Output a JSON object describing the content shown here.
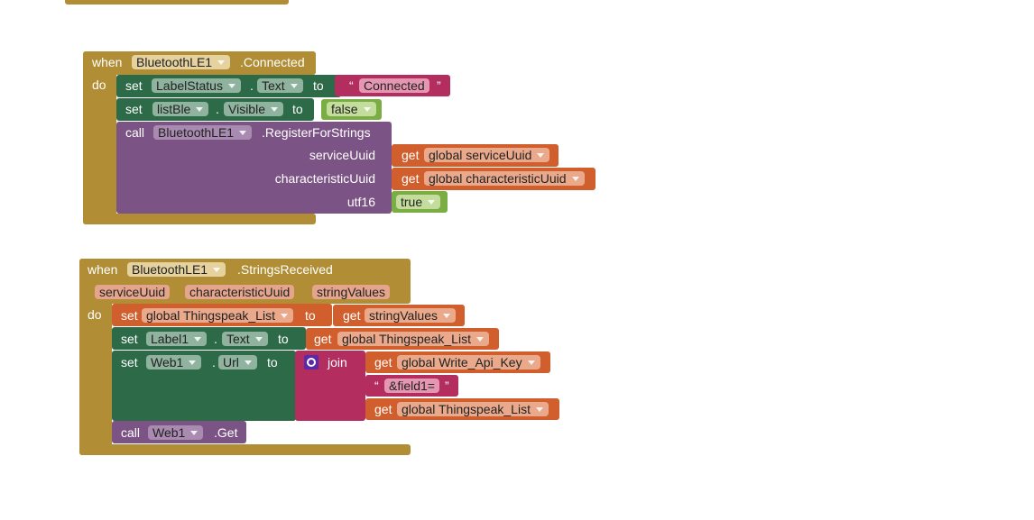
{
  "event1": {
    "when": "when",
    "component": "BluetoothLE1",
    "event": ".Connected",
    "do": "do",
    "set_label": {
      "set": "set",
      "component": "LabelStatus",
      "dot": ".",
      "property": "Text",
      "to": "to",
      "open_quote": "“",
      "text": "Connected",
      "close_quote": "”"
    },
    "set_list": {
      "set": "set",
      "component": "listBle",
      "dot": ".",
      "property": "Visible",
      "to": "to",
      "value": "false"
    },
    "call": {
      "call": "call",
      "component": "BluetoothLE1",
      "method": ".RegisterForStrings",
      "args": [
        {
          "name": "serviceUuid",
          "get": "get",
          "variable": "global serviceUuid"
        },
        {
          "name": "characteristicUuid",
          "get": "get",
          "variable": "global characteristicUuid"
        },
        {
          "name": "utf16",
          "value": "true"
        }
      ]
    }
  },
  "event2": {
    "when": "when",
    "component": "BluetoothLE1",
    "event": ".StringsReceived",
    "params": [
      "serviceUuid",
      "characteristicUuid",
      "stringValues"
    ],
    "do": "do",
    "set_global": {
      "set": "set",
      "variable": "global Thingspeak_List",
      "to": "to",
      "get": "get",
      "value": "stringValues"
    },
    "set_label": {
      "set": "set",
      "component": "Label1",
      "dot": ".",
      "property": "Text",
      "to": "to",
      "get": "get",
      "value": "global Thingspeak_List"
    },
    "set_url": {
      "set": "set",
      "component": "Web1",
      "dot": ".",
      "property": "Url",
      "to": "to",
      "join": "join",
      "items": [
        {
          "get": "get",
          "variable": "global Write_Api_Key"
        },
        {
          "open_quote": "“",
          "text": "&field1=",
          "close_quote": "”"
        },
        {
          "get": "get",
          "variable": "global Thingspeak_List"
        }
      ]
    },
    "call": {
      "call": "call",
      "component": "Web1",
      "method": ".Get"
    }
  }
}
